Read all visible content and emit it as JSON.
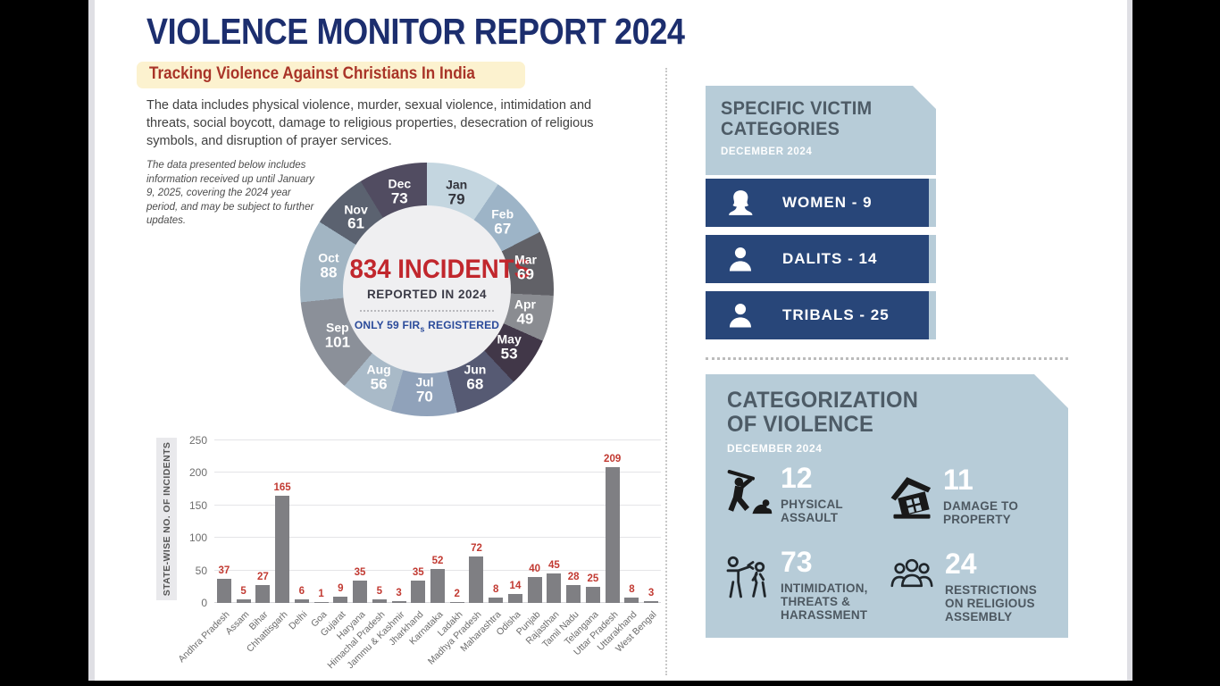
{
  "colors": {
    "title_navy": "#1c2e6e",
    "subtitle_red": "#a93428",
    "subtitle_bg": "#fcf2cf",
    "headline_red": "#c1272d",
    "fir_blue": "#2a4a9a",
    "panel_blue": "#b7ccd8",
    "bar_navy": "#284679",
    "bar_gray": "#7f7f83",
    "value_red": "#c23a32"
  },
  "header": {
    "title": "VIOLENCE MONITOR REPORT 2024",
    "subtitle": "Tracking Violence Against Christians In India",
    "description": "The data includes physical violence, murder, sexual violence, intimidation and threats, social boycott, damage to religious properties, desecration of religious symbols, and disruption of prayer services.",
    "note": "The data presented below includes information received up until January 9, 2025, covering the 2024 year period, and may be subject to further updates."
  },
  "donut_center": {
    "headline": "834 INCIDENTS",
    "caption": "REPORTED IN 2024",
    "fir_prefix": "ONLY 59 FIR",
    "fir_sub": "s",
    "fir_suffix": " REGISTERED"
  },
  "chart_data": [
    {
      "type": "pie",
      "subtype": "donut",
      "title": "834 INCIDENTS REPORTED IN 2024",
      "annotation": "ONLY 59 FIRs REGISTERED",
      "categories": [
        "Jan",
        "Feb",
        "Mar",
        "Apr",
        "May",
        "Jun",
        "Jul",
        "Aug",
        "Sep",
        "Oct",
        "Nov",
        "Dec"
      ],
      "values": [
        79,
        67,
        69,
        49,
        53,
        68,
        70,
        56,
        101,
        88,
        61,
        73
      ],
      "total": 834,
      "segment_colors": [
        "#c4d6e0",
        "#9db4c7",
        "#616167",
        "#8a8c91",
        "#413748",
        "#565a73",
        "#90a2ba",
        "#a9bac8",
        "#8b9099",
        "#a2b5c3",
        "#5b6270",
        "#514c61"
      ],
      "label_colors": [
        "#33343c",
        "#ffffff",
        "#ffffff",
        "#ffffff",
        "#ffffff",
        "#ffffff",
        "#ffffff",
        "#ffffff",
        "#ffffff",
        "#ffffff",
        "#ffffff",
        "#ffffff"
      ],
      "start_angle": "12 o'clock, clockwise"
    },
    {
      "type": "bar",
      "title": "",
      "xlabel": "",
      "ylabel": "STATE-WISE NO. OF INCIDENTS",
      "ylim": [
        0,
        250
      ],
      "yticks": [
        0,
        50,
        100,
        150,
        200,
        250
      ],
      "grid": true,
      "categories": [
        "Andhra Pradesh",
        "Assam",
        "Bihar",
        "Chhattisgarh",
        "Delhi",
        "Goa",
        "Gujarat",
        "Haryana",
        "Himachal Pradesh",
        "Jammu & Kashmir",
        "Jharkhand",
        "Karnataka",
        "Ladakh",
        "Madhya Pradesh",
        "Maharashtra",
        "Odisha",
        "Punjab",
        "Rajasthan",
        "Tamil Nadu",
        "Telangana",
        "Uttar Pradesh",
        "Uttarakhand",
        "West Bengal"
      ],
      "values": [
        37,
        5,
        27,
        165,
        6,
        1,
        9,
        35,
        5,
        3,
        35,
        52,
        2,
        72,
        8,
        14,
        40,
        45,
        28,
        25,
        209,
        8,
        3
      ]
    }
  ],
  "victim_panel": {
    "title": "SPECIFIC VICTIM\nCATEGORIES",
    "period": "DECEMBER 2024",
    "items": [
      {
        "icon": "woman-icon",
        "label": "WOMEN - 9"
      },
      {
        "icon": "person-icon",
        "label": "DALITS - 14"
      },
      {
        "icon": "person-icon",
        "label": "TRIBALS - 25"
      }
    ]
  },
  "categorization_panel": {
    "title": "CATEGORIZATION\nOF VIOLENCE",
    "period": "DECEMBER 2024",
    "items": [
      {
        "icon": "physical-assault-icon",
        "value": "12",
        "label": "PHYSICAL\nASSAULT"
      },
      {
        "icon": "damaged-house-icon",
        "value": "11",
        "label": "DAMAGE TO\nPROPERTY"
      },
      {
        "icon": "intimidation-icon",
        "value": "73",
        "label": "INTIMIDATION,\nTHREATS &\nHARASSMENT"
      },
      {
        "icon": "group-icon",
        "value": "24",
        "label": "RESTRICTIONS\nON RELIGIOUS\nASSEMBLY"
      }
    ]
  }
}
